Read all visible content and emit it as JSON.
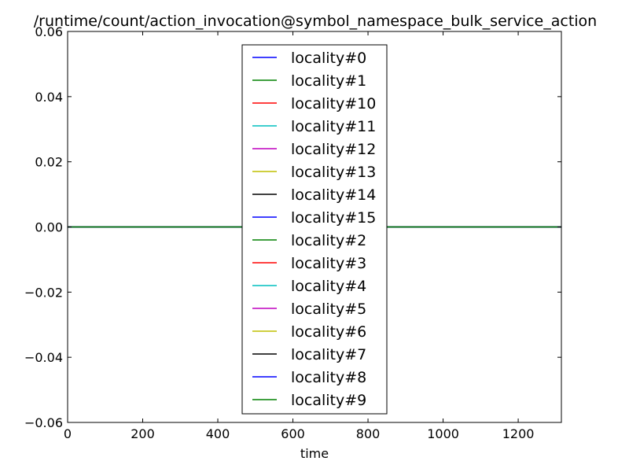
{
  "chart_data": {
    "type": "line",
    "title": "/runtime/count/action_invocation@symbol_namespace_bulk_service_action",
    "xlabel": "time",
    "ylabel": "",
    "xlim": [
      0,
      1315
    ],
    "ylim": [
      -0.06,
      0.06
    ],
    "x_ticks": [
      0,
      200,
      400,
      600,
      800,
      1000,
      1200
    ],
    "y_ticks": [
      -0.06,
      -0.04,
      -0.02,
      0.0,
      0.02,
      0.04,
      0.06
    ],
    "y_tick_labels": [
      "−0.06",
      "−0.04",
      "−0.02",
      "0.00",
      "0.02",
      "0.04",
      "0.06"
    ],
    "grid": false,
    "legend_position": "top-center",
    "x": [
      0,
      1315
    ],
    "series": [
      {
        "name": "locality#0",
        "color": "#0000ff",
        "values": [
          0,
          0
        ]
      },
      {
        "name": "locality#1",
        "color": "#008000",
        "values": [
          0,
          0
        ]
      },
      {
        "name": "locality#10",
        "color": "#ff0000",
        "values": [
          0,
          0
        ]
      },
      {
        "name": "locality#11",
        "color": "#00bfbf",
        "values": [
          0,
          0
        ]
      },
      {
        "name": "locality#12",
        "color": "#bf00bf",
        "values": [
          0,
          0
        ]
      },
      {
        "name": "locality#13",
        "color": "#bfbf00",
        "values": [
          0,
          0
        ]
      },
      {
        "name": "locality#14",
        "color": "#000000",
        "values": [
          0,
          0
        ]
      },
      {
        "name": "locality#15",
        "color": "#0000ff",
        "values": [
          0,
          0
        ]
      },
      {
        "name": "locality#2",
        "color": "#008000",
        "values": [
          0,
          0
        ]
      },
      {
        "name": "locality#3",
        "color": "#ff0000",
        "values": [
          0,
          0
        ]
      },
      {
        "name": "locality#4",
        "color": "#00bfbf",
        "values": [
          0,
          0
        ]
      },
      {
        "name": "locality#5",
        "color": "#bf00bf",
        "values": [
          0,
          0
        ]
      },
      {
        "name": "locality#6",
        "color": "#bfbf00",
        "values": [
          0,
          0
        ]
      },
      {
        "name": "locality#7",
        "color": "#000000",
        "values": [
          0,
          0
        ]
      },
      {
        "name": "locality#8",
        "color": "#0000ff",
        "values": [
          0,
          0
        ]
      },
      {
        "name": "locality#9",
        "color": "#008000",
        "values": [
          0,
          0
        ]
      }
    ]
  }
}
